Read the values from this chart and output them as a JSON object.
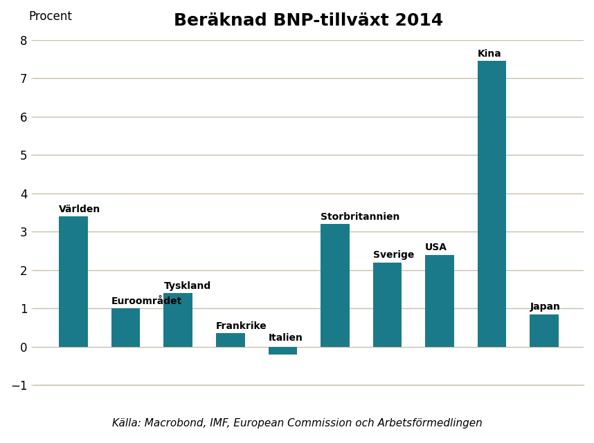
{
  "title": "Beräknad BNP-tillväxt 2014",
  "ylabel": "Procent",
  "categories": [
    "Världen",
    "Euroområdet",
    "Tyskland",
    "Frankrike",
    "Italien",
    "Storbritannien",
    "Sverige",
    "USA",
    "Kina",
    "Japan"
  ],
  "values": [
    3.4,
    1.0,
    1.4,
    0.35,
    -0.2,
    3.2,
    2.2,
    2.4,
    7.45,
    0.85
  ],
  "bar_color": "#1a7a8a",
  "ylim": [
    -1,
    8
  ],
  "yticks": [
    -1,
    0,
    1,
    2,
    3,
    4,
    5,
    6,
    7,
    8
  ],
  "source_text": "Källa: Macrobond, IMF, European Commission och Arbetsförmedlingen",
  "background_color": "#ffffff",
  "grid_color": "#c8bfa8",
  "title_fontsize": 18,
  "label_fontsize": 10,
  "source_fontsize": 11,
  "bar_width": 0.55
}
